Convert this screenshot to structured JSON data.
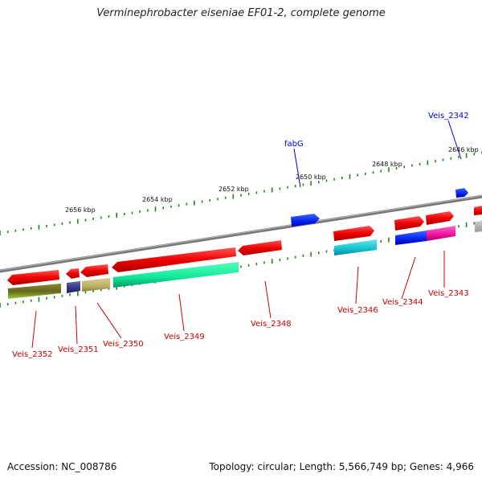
{
  "title": "Verminephrobacter eiseniae EF01-2, complete genome",
  "footer": {
    "accession": "Accession: NC_008786",
    "summary": "Topology: circular; Length: 5,566,749 bp; Genes: 4,966"
  },
  "colors": {
    "backbone": "#7a7a7a",
    "tick": "#1a8a1a",
    "red_gene": "#ee1111",
    "label_red": "#cc0000",
    "label_blue": "#0000cc"
  },
  "ruler_labels": [
    "2656 kbp",
    "2654 kbp",
    "2652 kbp",
    "2650 kbp",
    "2648 kbp",
    "2646 kbp"
  ],
  "gene_labels": [
    {
      "text": "fabG",
      "color": "blue"
    },
    {
      "text": "Veis_2342",
      "color": "blue"
    },
    {
      "text": "Veis_2343",
      "color": "red"
    },
    {
      "text": "Veis_2344",
      "color": "red"
    },
    {
      "text": "Veis_2346",
      "color": "red"
    },
    {
      "text": "Veis_2348",
      "color": "red"
    },
    {
      "text": "Veis_2349",
      "color": "red"
    },
    {
      "text": "Veis_2350",
      "color": "red"
    },
    {
      "text": "Veis_2351",
      "color": "red"
    },
    {
      "text": "Veis_2352",
      "color": "red"
    }
  ]
}
